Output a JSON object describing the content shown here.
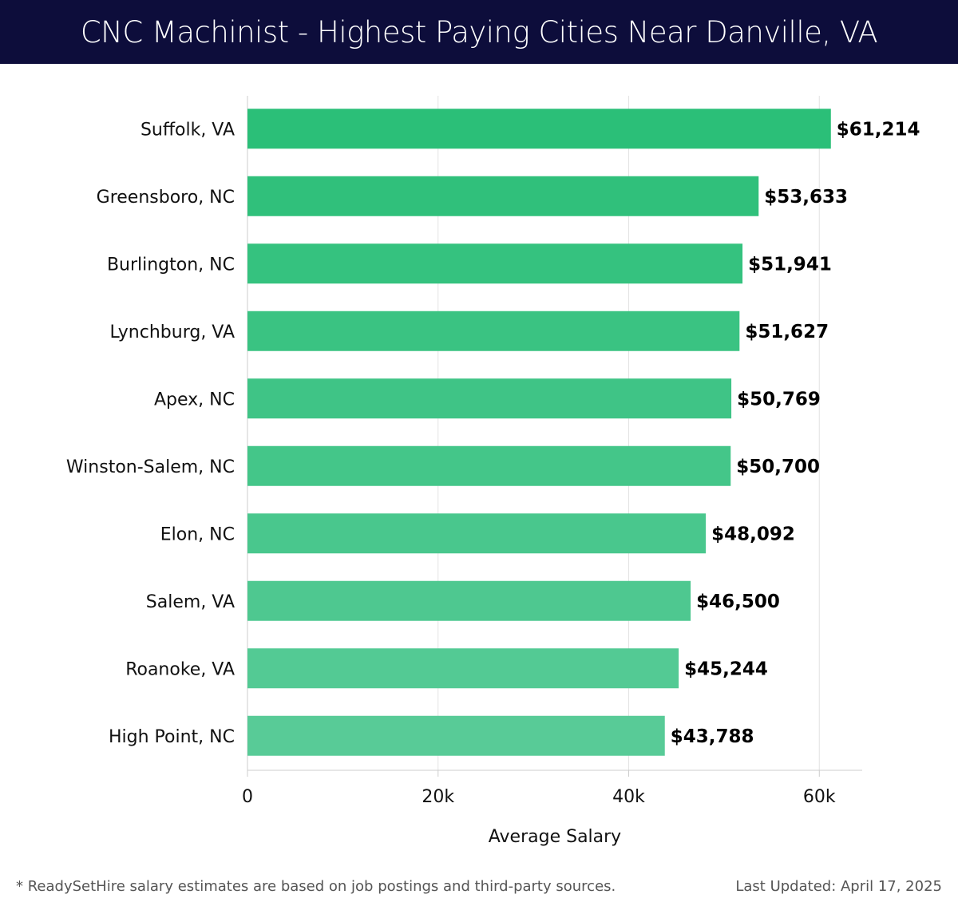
{
  "title": "CNC Machinist - Highest Paying Cities Near Danville, VA",
  "footer": {
    "note": "* ReadySetHire salary estimates are based on job postings and third-party sources.",
    "updated": "Last Updated: April 17, 2025"
  },
  "colors": {
    "title_bg": "#0d0d3b",
    "bar_top": "#2bbf78",
    "bar_bottom": "#58cb97"
  },
  "chart_data": {
    "type": "bar",
    "orientation": "horizontal",
    "title": "CNC Machinist - Highest Paying Cities Near Danville, VA",
    "xlabel": "Average Salary",
    "ylabel": "",
    "categories": [
      "Suffolk, VA",
      "Greensboro, NC",
      "Burlington, NC",
      "Lynchburg, VA",
      "Apex, NC",
      "Winston-Salem, NC",
      "Elon, NC",
      "Salem, VA",
      "Roanoke, VA",
      "High Point, NC"
    ],
    "values": [
      61214,
      53633,
      51941,
      51627,
      50769,
      50700,
      48092,
      46500,
      45244,
      43788
    ],
    "value_labels": [
      "$61,214",
      "$53,633",
      "$51,941",
      "$51,627",
      "$50,769",
      "$50,700",
      "$48,092",
      "$46,500",
      "$45,244",
      "$43,788"
    ],
    "xticks": [
      0,
      20000,
      40000,
      60000
    ],
    "xtick_labels": [
      "0",
      "20k",
      "40k",
      "60k"
    ],
    "xlim": [
      0,
      64500
    ],
    "grid": true
  }
}
